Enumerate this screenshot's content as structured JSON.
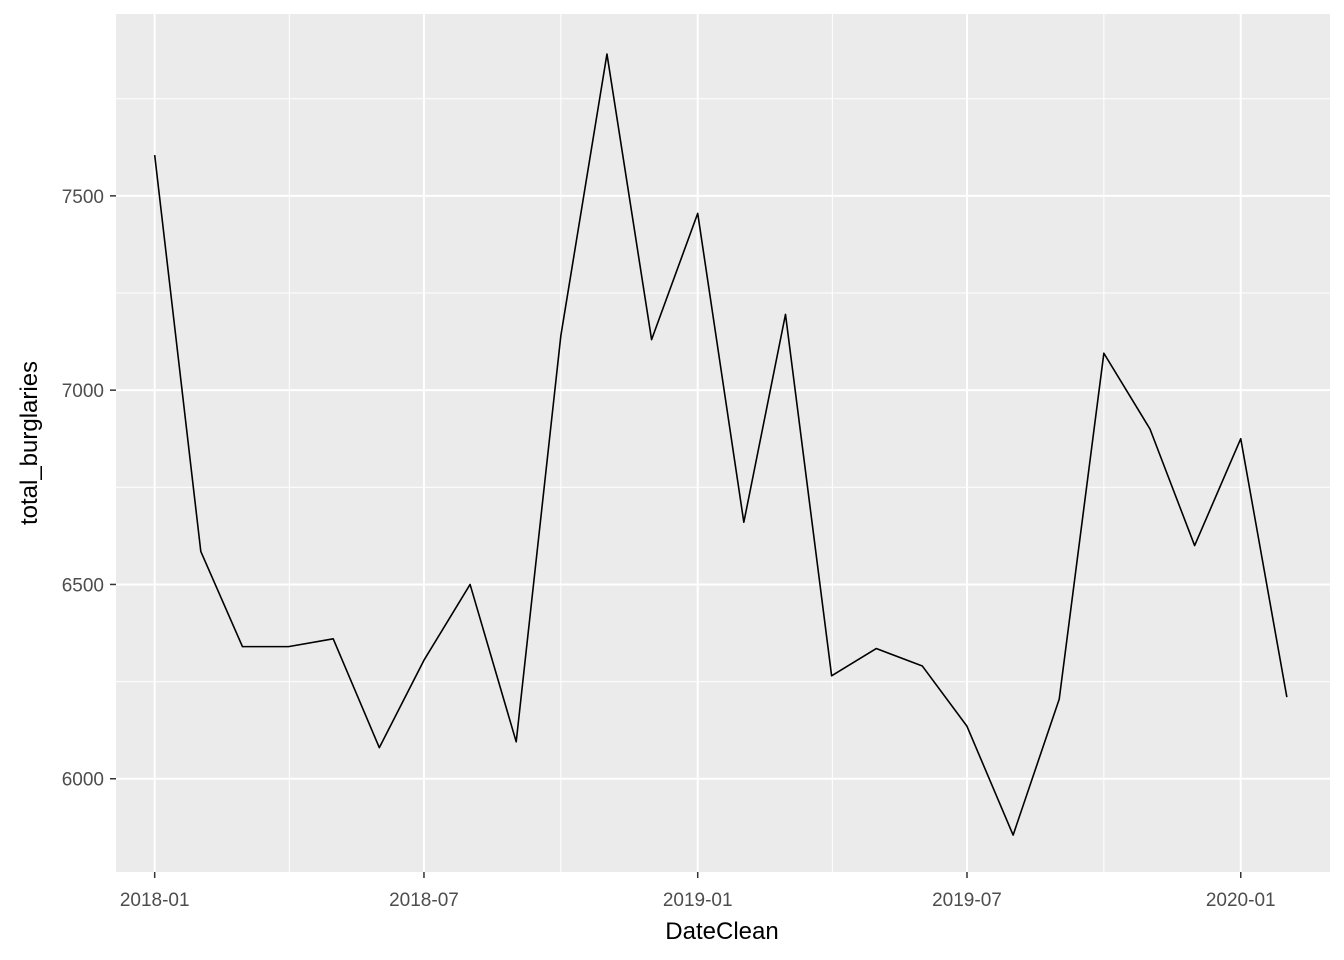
{
  "chart_data": {
    "type": "line",
    "title": "",
    "xlabel": "DateClean",
    "ylabel": "total_burglaries",
    "x": [
      "2018-01",
      "2018-02",
      "2018-03",
      "2018-04",
      "2018-05",
      "2018-06",
      "2018-07",
      "2018-08",
      "2018-09",
      "2018-10",
      "2018-11",
      "2018-12",
      "2019-01",
      "2019-02",
      "2019-03",
      "2019-04",
      "2019-05",
      "2019-06",
      "2019-07",
      "2019-08",
      "2019-09",
      "2019-10",
      "2019-11",
      "2019-12",
      "2020-01",
      "2020-02"
    ],
    "series": [
      {
        "values": [
          7605,
          6585,
          6340,
          6340,
          6360,
          6080,
          6305,
          6500,
          6095,
          7140,
          7865,
          7130,
          7455,
          6660,
          7195,
          6265,
          6335,
          6290,
          6135,
          5855,
          6205,
          7095,
          6900,
          6600,
          6875,
          6210
        ]
      }
    ],
    "x_ticks": [
      "2018-01",
      "2018-07",
      "2019-01",
      "2019-07",
      "2020-01"
    ],
    "y_ticks": [
      6000,
      6500,
      7000,
      7500
    ],
    "xlim": [
      "2017-12-06",
      "2020-03-01"
    ],
    "ylim": [
      5760,
      7968
    ],
    "grid": true,
    "colors": {
      "panel": "#ebebeb",
      "grid": "#ffffff",
      "line": "#000000",
      "tick_text": "#4d4d4d"
    }
  }
}
